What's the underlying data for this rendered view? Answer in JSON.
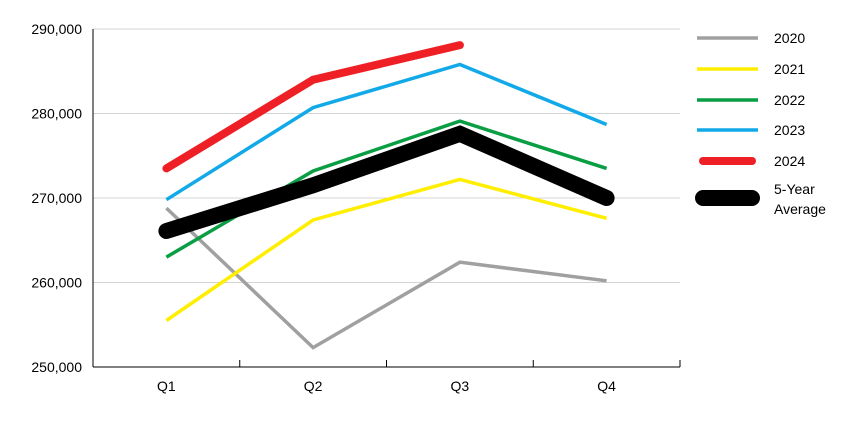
{
  "chart_data": {
    "type": "line",
    "title": "",
    "xlabel": "",
    "ylabel": "",
    "categories": [
      "Q1",
      "Q2",
      "Q3",
      "Q4"
    ],
    "ylim": [
      250000,
      290000
    ],
    "yticks": [
      250000,
      260000,
      270000,
      280000,
      290000
    ],
    "ytick_labels": [
      "250,000",
      "260,000",
      "270,000",
      "280,000",
      "290,000"
    ],
    "grid": "horizontal",
    "legend_position": "right",
    "series": [
      {
        "name": "2020",
        "color": "#a0a0a0",
        "values": [
          268800,
          252300,
          262400,
          260200
        ]
      },
      {
        "name": "2021",
        "color": "#ffee00",
        "values": [
          255500,
          267400,
          272200,
          267600
        ]
      },
      {
        "name": "2022",
        "color": "#0a9e44",
        "values": [
          263000,
          273200,
          279100,
          273500
        ]
      },
      {
        "name": "2023",
        "color": "#12a9e8",
        "values": [
          269800,
          280700,
          285800,
          278700
        ]
      },
      {
        "name": "2024",
        "color": "#ee2026",
        "values": [
          273500,
          284000,
          288100,
          null
        ]
      },
      {
        "name": "5-Year Average",
        "color": "#000000",
        "values": [
          266100,
          271500,
          277600,
          270000
        ]
      }
    ]
  }
}
